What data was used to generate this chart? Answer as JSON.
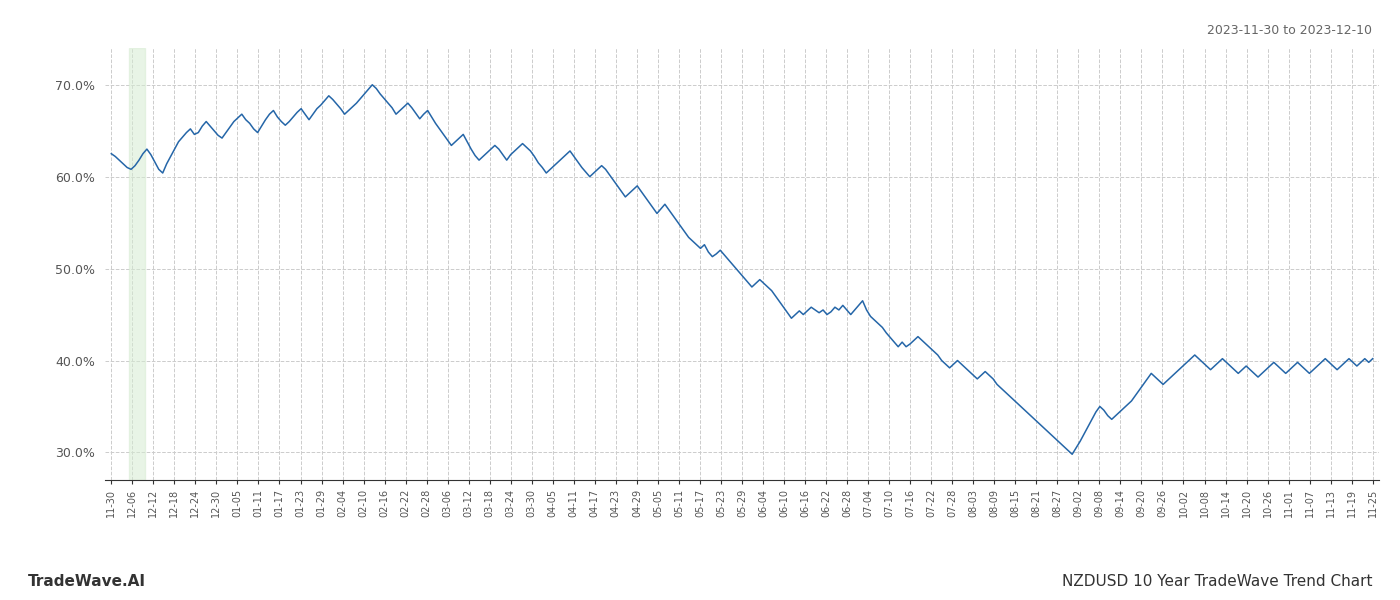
{
  "title_top_right": "2023-11-30 to 2023-12-10",
  "title_bottom_left": "TradeWave.AI",
  "title_bottom_right": "NZDUSD 10 Year TradeWave Trend Chart",
  "background_color": "#ffffff",
  "line_color": "#2566a8",
  "line_width": 1.1,
  "ylim": [
    0.27,
    0.74
  ],
  "yticks": [
    0.3,
    0.4,
    0.5,
    0.6,
    0.7
  ],
  "ytick_labels": [
    "30.0%",
    "40.0%",
    "50.0%",
    "60.0%",
    "70.0%"
  ],
  "grid_color": "#cccccc",
  "grid_style": "--",
  "highlight_color": "#d6ecd2",
  "highlight_alpha": 0.55,
  "xtick_labels": [
    "11-30",
    "12-06",
    "12-12",
    "12-18",
    "12-24",
    "12-30",
    "01-05",
    "01-11",
    "01-17",
    "01-23",
    "01-29",
    "02-04",
    "02-10",
    "02-16",
    "02-22",
    "02-28",
    "03-06",
    "03-12",
    "03-18",
    "03-24",
    "03-30",
    "04-05",
    "04-11",
    "04-17",
    "04-23",
    "04-29",
    "05-05",
    "05-11",
    "05-17",
    "05-23",
    "05-29",
    "06-04",
    "06-10",
    "06-16",
    "06-22",
    "06-28",
    "07-04",
    "07-10",
    "07-16",
    "07-22",
    "07-28",
    "08-03",
    "08-09",
    "08-15",
    "08-21",
    "08-27",
    "09-02",
    "09-08",
    "09-14",
    "09-20",
    "09-26",
    "10-02",
    "10-08",
    "10-14",
    "10-20",
    "10-26",
    "11-01",
    "11-07",
    "11-13",
    "11-19",
    "11-25"
  ],
  "y_values": [
    0.625,
    0.622,
    0.618,
    0.614,
    0.61,
    0.608,
    0.612,
    0.618,
    0.625,
    0.63,
    0.624,
    0.616,
    0.608,
    0.604,
    0.614,
    0.622,
    0.63,
    0.638,
    0.643,
    0.648,
    0.652,
    0.646,
    0.648,
    0.655,
    0.66,
    0.655,
    0.65,
    0.645,
    0.642,
    0.648,
    0.654,
    0.66,
    0.664,
    0.668,
    0.662,
    0.658,
    0.652,
    0.648,
    0.655,
    0.662,
    0.668,
    0.672,
    0.665,
    0.66,
    0.656,
    0.66,
    0.665,
    0.67,
    0.674,
    0.668,
    0.662,
    0.668,
    0.674,
    0.678,
    0.683,
    0.688,
    0.684,
    0.679,
    0.674,
    0.668,
    0.672,
    0.676,
    0.68,
    0.685,
    0.69,
    0.695,
    0.7,
    0.696,
    0.69,
    0.685,
    0.68,
    0.675,
    0.668,
    0.672,
    0.676,
    0.68,
    0.675,
    0.669,
    0.663,
    0.668,
    0.672,
    0.665,
    0.658,
    0.652,
    0.646,
    0.64,
    0.634,
    0.638,
    0.642,
    0.646,
    0.638,
    0.63,
    0.623,
    0.618,
    0.622,
    0.626,
    0.63,
    0.634,
    0.63,
    0.624,
    0.618,
    0.624,
    0.628,
    0.632,
    0.636,
    0.632,
    0.628,
    0.622,
    0.615,
    0.61,
    0.604,
    0.608,
    0.612,
    0.616,
    0.62,
    0.624,
    0.628,
    0.622,
    0.616,
    0.61,
    0.605,
    0.6,
    0.604,
    0.608,
    0.612,
    0.608,
    0.602,
    0.596,
    0.59,
    0.584,
    0.578,
    0.582,
    0.586,
    0.59,
    0.584,
    0.578,
    0.572,
    0.566,
    0.56,
    0.565,
    0.57,
    0.564,
    0.558,
    0.552,
    0.546,
    0.54,
    0.534,
    0.53,
    0.526,
    0.522,
    0.526,
    0.518,
    0.513,
    0.516,
    0.52,
    0.515,
    0.51,
    0.505,
    0.5,
    0.495,
    0.49,
    0.485,
    0.48,
    0.484,
    0.488,
    0.484,
    0.48,
    0.476,
    0.47,
    0.464,
    0.458,
    0.452,
    0.446,
    0.45,
    0.454,
    0.45,
    0.454,
    0.458,
    0.455,
    0.452,
    0.455,
    0.45,
    0.453,
    0.458,
    0.455,
    0.46,
    0.455,
    0.45,
    0.455,
    0.46,
    0.465,
    0.455,
    0.448,
    0.444,
    0.44,
    0.436,
    0.43,
    0.425,
    0.42,
    0.415,
    0.42,
    0.415,
    0.418,
    0.422,
    0.426,
    0.422,
    0.418,
    0.414,
    0.41,
    0.406,
    0.4,
    0.396,
    0.392,
    0.396,
    0.4,
    0.396,
    0.392,
    0.388,
    0.384,
    0.38,
    0.384,
    0.388,
    0.384,
    0.38,
    0.374,
    0.37,
    0.366,
    0.362,
    0.358,
    0.354,
    0.35,
    0.346,
    0.342,
    0.338,
    0.334,
    0.33,
    0.326,
    0.322,
    0.318,
    0.314,
    0.31,
    0.306,
    0.302,
    0.298,
    0.305,
    0.312,
    0.32,
    0.328,
    0.336,
    0.344,
    0.35,
    0.346,
    0.34,
    0.336,
    0.34,
    0.344,
    0.348,
    0.352,
    0.356,
    0.362,
    0.368,
    0.374,
    0.38,
    0.386,
    0.382,
    0.378,
    0.374,
    0.378,
    0.382,
    0.386,
    0.39,
    0.394,
    0.398,
    0.402,
    0.406,
    0.402,
    0.398,
    0.394,
    0.39,
    0.394,
    0.398,
    0.402,
    0.398,
    0.394,
    0.39,
    0.386,
    0.39,
    0.394,
    0.39,
    0.386,
    0.382,
    0.386,
    0.39,
    0.394,
    0.398,
    0.394,
    0.39,
    0.386,
    0.39,
    0.394,
    0.398,
    0.394,
    0.39,
    0.386,
    0.39,
    0.394,
    0.398,
    0.402,
    0.398,
    0.394,
    0.39,
    0.394,
    0.398,
    0.402,
    0.398,
    0.394,
    0.398,
    0.402,
    0.398,
    0.402
  ],
  "highlight_xstart": 0.83,
  "highlight_xend": 1.6
}
